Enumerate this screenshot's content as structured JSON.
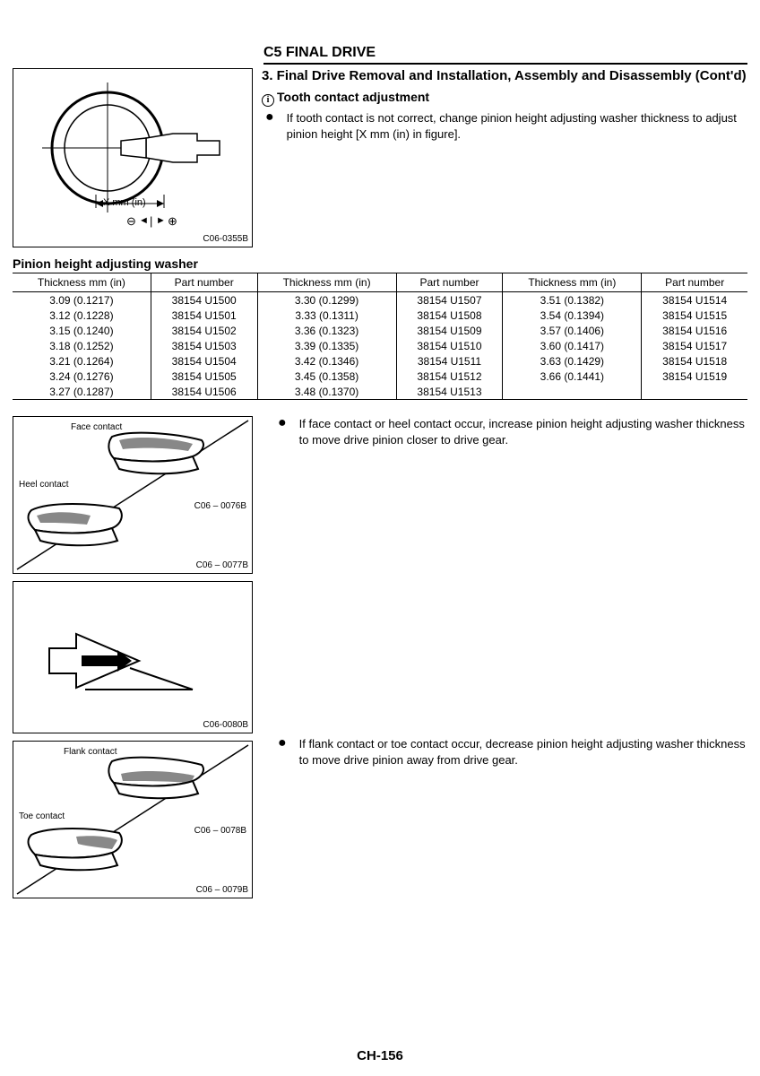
{
  "chapter": "C5 FINAL DRIVE",
  "section_heading": "3. Final Drive Removal and Installation, Assembly and Disassembly (Cont'd)",
  "subhead_icon": "i",
  "subhead": "Tooth contact adjustment",
  "para1": "If tooth contact is not correct, change pinion height adjusting washer thickness to adjust pinion height [X mm (in) in figure].",
  "fig1": {
    "dim_label": "X mm (in)",
    "code": "C06-0355B",
    "minus": "⊖",
    "plus": "⊕"
  },
  "table_title": "Pinion height adjusting washer",
  "headers": [
    "Thickness mm (in)",
    "Part number",
    "Thickness mm (in)",
    "Part number",
    "Thickness mm (in)",
    "Part number"
  ],
  "rows": [
    [
      "3.09 (0.1217)",
      "38154 U1500",
      "3.30 (0.1299)",
      "38154 U1507",
      "3.51 (0.1382)",
      "38154 U1514"
    ],
    [
      "3.12 (0.1228)",
      "38154 U1501",
      "3.33 (0.1311)",
      "38154 U1508",
      "3.54 (0.1394)",
      "38154 U1515"
    ],
    [
      "3.15 (0.1240)",
      "38154 U1502",
      "3.36 (0.1323)",
      "38154 U1509",
      "3.57 (0.1406)",
      "38154 U1516"
    ],
    [
      "3.18 (0.1252)",
      "38154 U1503",
      "3.39 (0.1335)",
      "38154 U1510",
      "3.60 (0.1417)",
      "38154 U1517"
    ],
    [
      "3.21 (0.1264)",
      "38154 U1504",
      "3.42 (0.1346)",
      "38154 U1511",
      "3.63 (0.1429)",
      "38154 U1518"
    ],
    [
      "3.24 (0.1276)",
      "38154 U1505",
      "3.45 (0.1358)",
      "38154 U1512",
      "3.66 (0.1441)",
      "38154 U1519"
    ],
    [
      "3.27 (0.1287)",
      "38154 U1506",
      "3.48 (0.1370)",
      "38154 U1513",
      "",
      ""
    ]
  ],
  "fig2": {
    "lbl_face": "Face contact",
    "lbl_heel": "Heel contact",
    "code_top": "C06 – 0076B",
    "code_bot": "C06 – 0077B"
  },
  "para2": "If face contact or heel contact occur, increase pinion height adjusting washer thickness to move drive pinion closer to drive gear.",
  "fig3": {
    "code": "C06-0080B"
  },
  "fig4": {
    "lbl_flank": "Flank contact",
    "lbl_toe": "Toe contact",
    "code_top": "C06 – 0078B",
    "code_bot": "C06 – 0079B"
  },
  "para3": "If flank contact or toe contact occur, decrease pinion height adjusting washer thickness to move drive pinion away from drive gear.",
  "page_number": "CH-156"
}
